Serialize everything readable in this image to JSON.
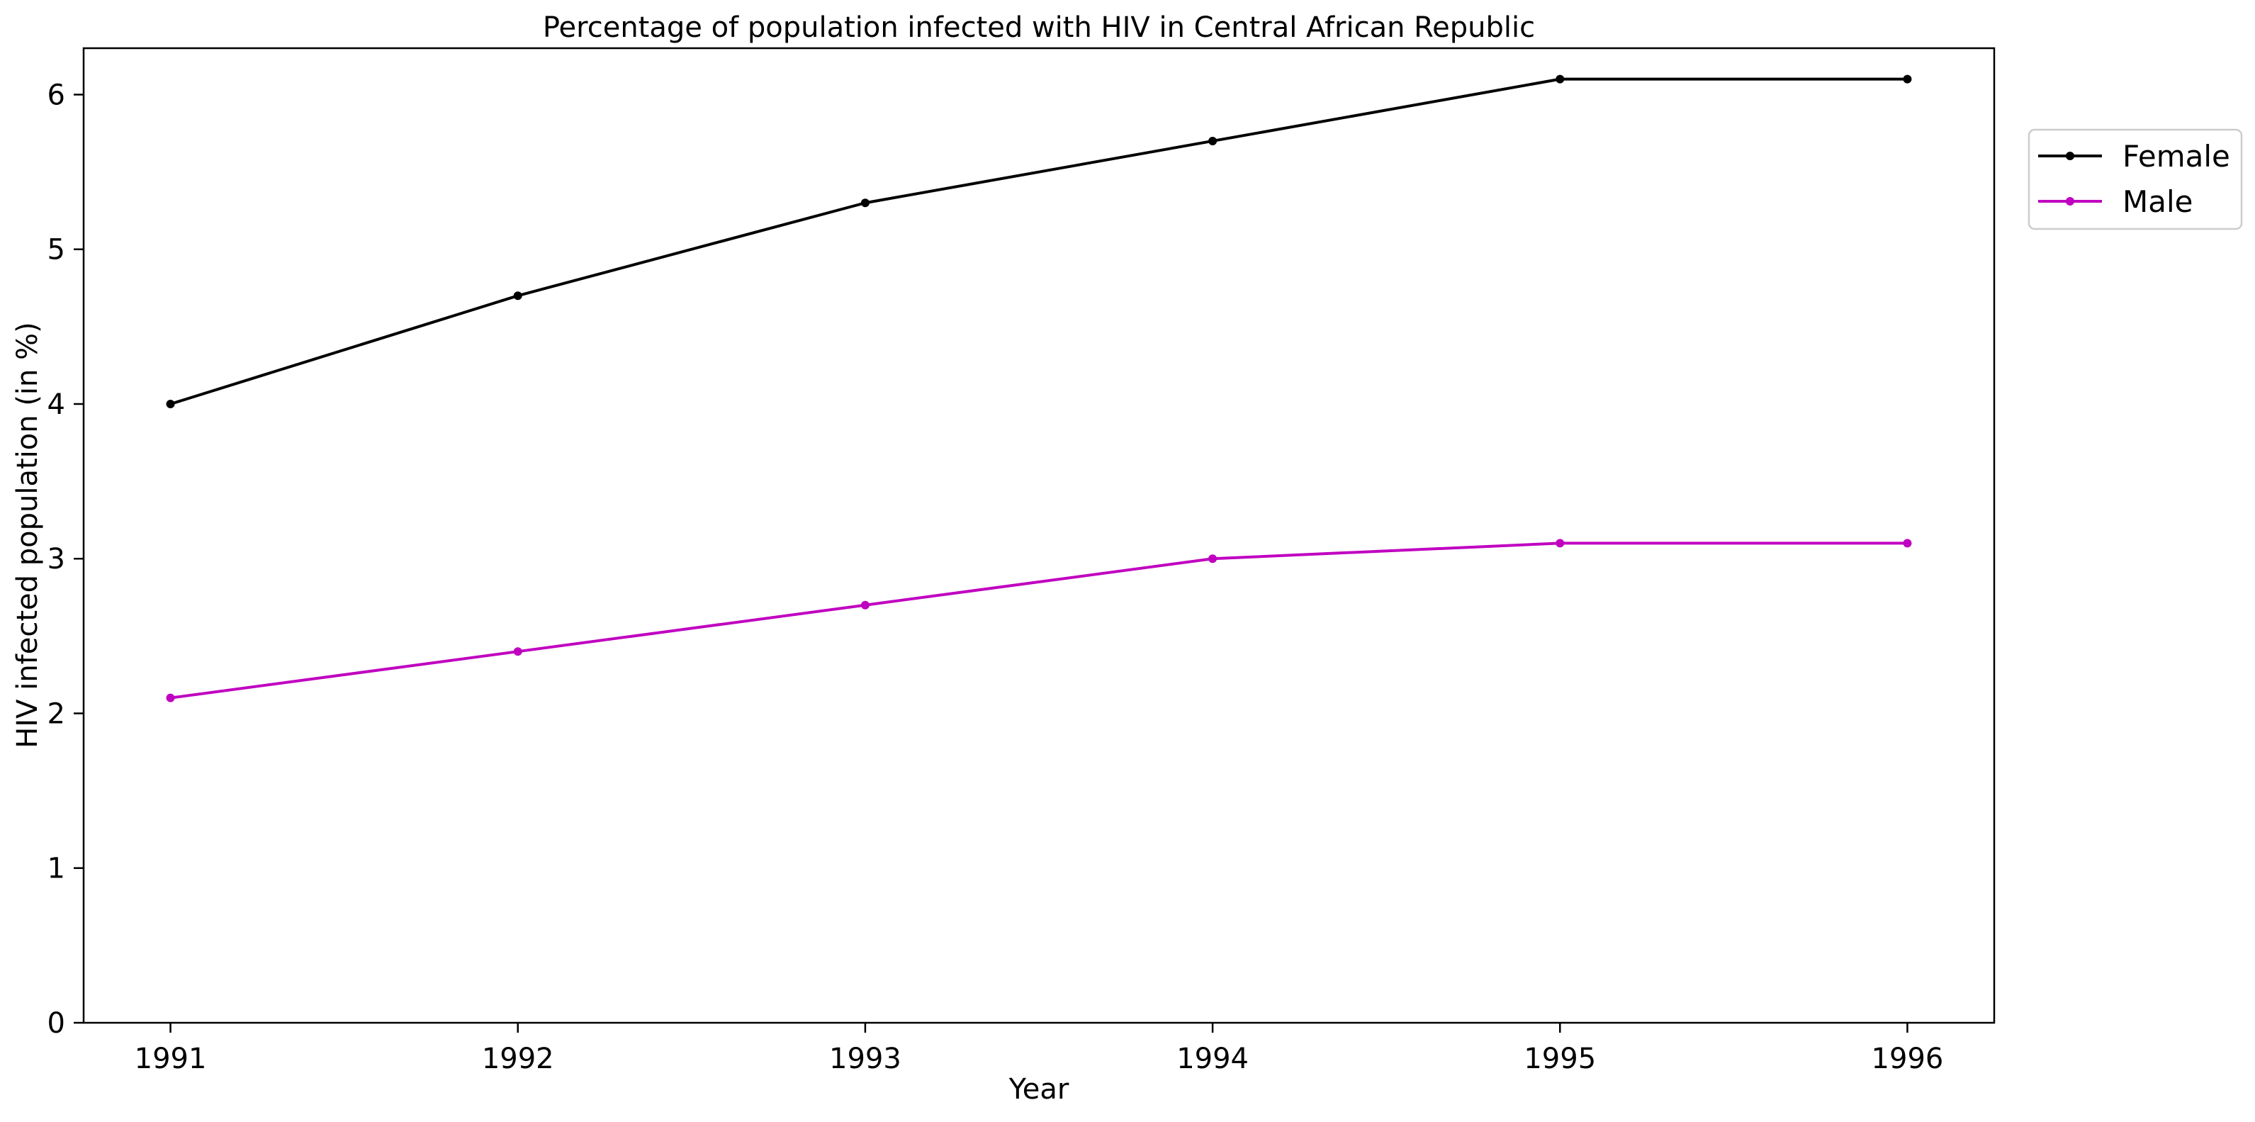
{
  "chart_data": {
    "type": "line",
    "title": "Percentage of population infected with HIV in Central African Republic",
    "xlabel": "Year",
    "ylabel": "HIV infected population (in %)",
    "x": [
      1991,
      1992,
      1993,
      1994,
      1995,
      1996
    ],
    "x_tick_labels": [
      "1991",
      "1992",
      "1993",
      "1994",
      "1995",
      "1996"
    ],
    "xlim": [
      1990.75,
      1996.25
    ],
    "ylim": [
      0,
      6.3
    ],
    "y_ticks": [
      0,
      1,
      2,
      3,
      4,
      5,
      6
    ],
    "y_tick_labels": [
      "0",
      "1",
      "2",
      "3",
      "4",
      "5",
      "6"
    ],
    "grid": false,
    "legend_position": "outside-top-right",
    "series": [
      {
        "name": "Female",
        "color": "#000000",
        "values": [
          4.0,
          4.7,
          5.3,
          5.7,
          6.1,
          6.1
        ]
      },
      {
        "name": "Male",
        "color": "#c000c0",
        "values": [
          2.1,
          2.4,
          2.7,
          3.0,
          3.1,
          3.1
        ]
      }
    ]
  }
}
